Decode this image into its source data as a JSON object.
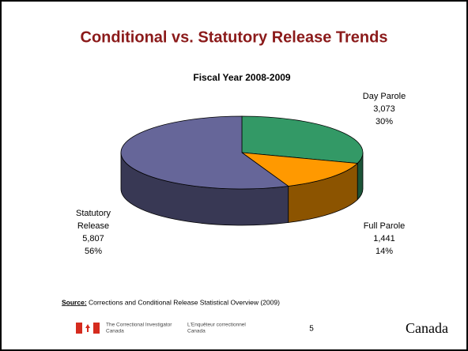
{
  "slide": {
    "title": "Conditional vs. Statutory Release Trends",
    "source_label": "Source:",
    "source_text": "Corrections and Conditional Release Statistical Overview (2009)",
    "footer_en": [
      "The Correctional Investigator",
      "Canada"
    ],
    "footer_fr": [
      "L'Enquêteur correctionnel",
      "Canada"
    ],
    "page_number": "5",
    "wordmark": "Canada"
  },
  "chart_data": {
    "type": "pie",
    "title": "Fiscal Year 2008-2009",
    "categories": [
      [
        "Day Parole"
      ],
      [
        "Full Parole"
      ],
      [
        "Statutory",
        "Release"
      ]
    ],
    "values": [
      3073,
      1441,
      5807
    ],
    "value_labels": [
      "3,073",
      "1,441",
      "5,807"
    ],
    "percentages": [
      30,
      14,
      56
    ],
    "percentage_labels": [
      "30%",
      "14%",
      "56%"
    ],
    "colors": [
      "#339966",
      "#ff9900",
      "#666699"
    ]
  }
}
